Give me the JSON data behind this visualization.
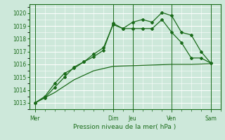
{
  "xlabel": "Pression niveau de la mer( hPa )",
  "bg_color": "#cde8da",
  "grid_color": "#ffffff",
  "line_color": "#1a6b1a",
  "ylim": [
    1012.5,
    1020.7
  ],
  "xlim": [
    -0.3,
    9.5
  ],
  "day_labels": [
    "Mer",
    "",
    "Dim",
    "Jeu",
    "",
    "Ven",
    "",
    "Sam"
  ],
  "day_line_positions": [
    0,
    4,
    5,
    7,
    9
  ],
  "yticks": [
    1013,
    1014,
    1015,
    1016,
    1017,
    1018,
    1019,
    1020
  ],
  "series1_x": [
    0,
    0.5,
    1,
    1.5,
    2,
    2.5,
    3,
    3.5,
    4,
    4.5,
    5,
    5.5,
    6,
    6.5,
    7,
    7.5,
    8,
    8.5,
    9
  ],
  "series1_y": [
    1013.0,
    1013.5,
    1014.5,
    1015.3,
    1015.7,
    1016.2,
    1016.6,
    1017.1,
    1019.2,
    1018.8,
    1019.3,
    1019.5,
    1019.3,
    1020.05,
    1019.8,
    1018.5,
    1018.3,
    1017.0,
    1016.1
  ],
  "series2_x": [
    0,
    0.5,
    1,
    1.5,
    2,
    2.5,
    3,
    3.5,
    4,
    4.5,
    5,
    5.5,
    6,
    6.5,
    7,
    7.5,
    8,
    8.5,
    9
  ],
  "series2_y": [
    1013.0,
    1013.4,
    1014.2,
    1015.0,
    1015.8,
    1016.2,
    1016.8,
    1017.3,
    1019.1,
    1018.8,
    1018.8,
    1018.8,
    1018.8,
    1019.5,
    1018.5,
    1017.7,
    1016.5,
    1016.5,
    1016.1
  ],
  "series3_x": [
    0,
    1,
    2,
    3,
    4,
    5,
    6,
    7,
    8,
    9
  ],
  "series3_y": [
    1013.0,
    1013.8,
    1014.8,
    1015.5,
    1015.85,
    1015.9,
    1015.95,
    1016.0,
    1016.0,
    1016.05
  ]
}
